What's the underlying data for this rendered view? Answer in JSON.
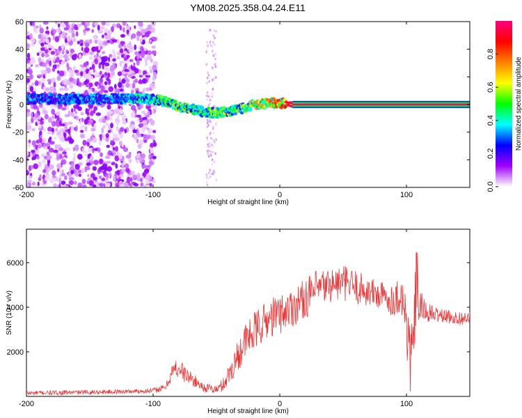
{
  "title": "YM08.2025.358.04.24.E11",
  "chart_data": [
    {
      "type": "heatmap",
      "xlabel": "Height of straight line (km)",
      "ylabel": "Frequency (Hz)",
      "xlim": [
        -200,
        150
      ],
      "ylim": [
        -60,
        60
      ],
      "xticks": [
        -200,
        -100,
        0,
        100
      ],
      "yticks": [
        60,
        40,
        20,
        0,
        -20,
        -40,
        -60
      ],
      "colorbar": {
        "label": "Normalized spectral amplitude",
        "range": [
          0,
          1
        ],
        "ticks": [
          0.0,
          0.2,
          0.4,
          0.6,
          0.8
        ],
        "colors": [
          "#ffffff",
          "#a000ff",
          "#0000ff",
          "#00ffff",
          "#00ff00",
          "#ffff00",
          "#ff8000",
          "#ff0000",
          "#ff0080"
        ]
      },
      "ridge": [
        {
          "x": -140,
          "f": 4,
          "a": 0.35
        },
        {
          "x": -100,
          "f": 4,
          "a": 0.45
        },
        {
          "x": -95,
          "f": 3,
          "a": 0.5
        },
        {
          "x": -90,
          "f": 2,
          "a": 0.55
        },
        {
          "x": -80,
          "f": -2,
          "a": 0.6
        },
        {
          "x": -70,
          "f": -3,
          "a": 0.55
        },
        {
          "x": -62,
          "f": -5,
          "a": 0.5
        },
        {
          "x": -55,
          "f": -6,
          "a": 0.55
        },
        {
          "x": -48,
          "f": -6,
          "a": 0.6
        },
        {
          "x": -40,
          "f": -5,
          "a": 0.55
        },
        {
          "x": -30,
          "f": -3,
          "a": 0.6
        },
        {
          "x": -20,
          "f": 0,
          "a": 0.7
        },
        {
          "x": -10,
          "f": 1,
          "a": 0.8
        },
        {
          "x": 0,
          "f": 1,
          "a": 0.85
        },
        {
          "x": 10,
          "f": 0,
          "a": 0.95
        },
        {
          "x": 50,
          "f": 0,
          "a": 1.0
        },
        {
          "x": 95,
          "f": 0,
          "a": 1.0
        },
        {
          "x": 100,
          "f": 0,
          "a": 0.9
        },
        {
          "x": 105,
          "f": 0,
          "a": 0.95
        },
        {
          "x": 150,
          "f": 0,
          "a": 1.0
        }
      ]
    },
    {
      "type": "line",
      "xlabel": "Height of straight line (km)",
      "ylabel": "SNR (10 * v/v)",
      "xlim": [
        -200,
        150
      ],
      "ylim": [
        0,
        7500
      ],
      "xticks": [
        -200,
        -100,
        0,
        100
      ],
      "yticks": [
        2000,
        4000,
        6000
      ],
      "line_color": "#ee3333",
      "series": [
        {
          "name": "SNR",
          "x": [
            -200,
            -180,
            -160,
            -140,
            -120,
            -100,
            -90,
            -85,
            -80,
            -75,
            -70,
            -65,
            -60,
            -55,
            -50,
            -45,
            -40,
            -35,
            -30,
            -25,
            -20,
            -15,
            -10,
            -5,
            0,
            10,
            20,
            30,
            40,
            50,
            60,
            70,
            80,
            90,
            95,
            100,
            103,
            106,
            108,
            110,
            115,
            120,
            130,
            140,
            150
          ],
          "y": [
            150,
            160,
            180,
            200,
            220,
            260,
            400,
            1100,
            1300,
            1000,
            800,
            600,
            400,
            350,
            300,
            500,
            1000,
            1600,
            2200,
            2600,
            2900,
            3200,
            3400,
            3600,
            3700,
            4000,
            4400,
            4800,
            5000,
            5100,
            4900,
            4700,
            4500,
            4300,
            4600,
            3500,
            1500,
            2800,
            5500,
            4000,
            3800,
            3700,
            3600,
            3500,
            3500
          ],
          "noise": [
            100,
            100,
            100,
            100,
            100,
            120,
            150,
            400,
            500,
            400,
            300,
            250,
            200,
            200,
            200,
            300,
            500,
            700,
            800,
            900,
            900,
            900,
            900,
            900,
            900,
            900,
            900,
            900,
            800,
            800,
            800,
            700,
            700,
            700,
            900,
            1800,
            1500,
            1500,
            1800,
            900,
            500,
            400,
            300,
            300,
            300
          ]
        }
      ]
    }
  ]
}
